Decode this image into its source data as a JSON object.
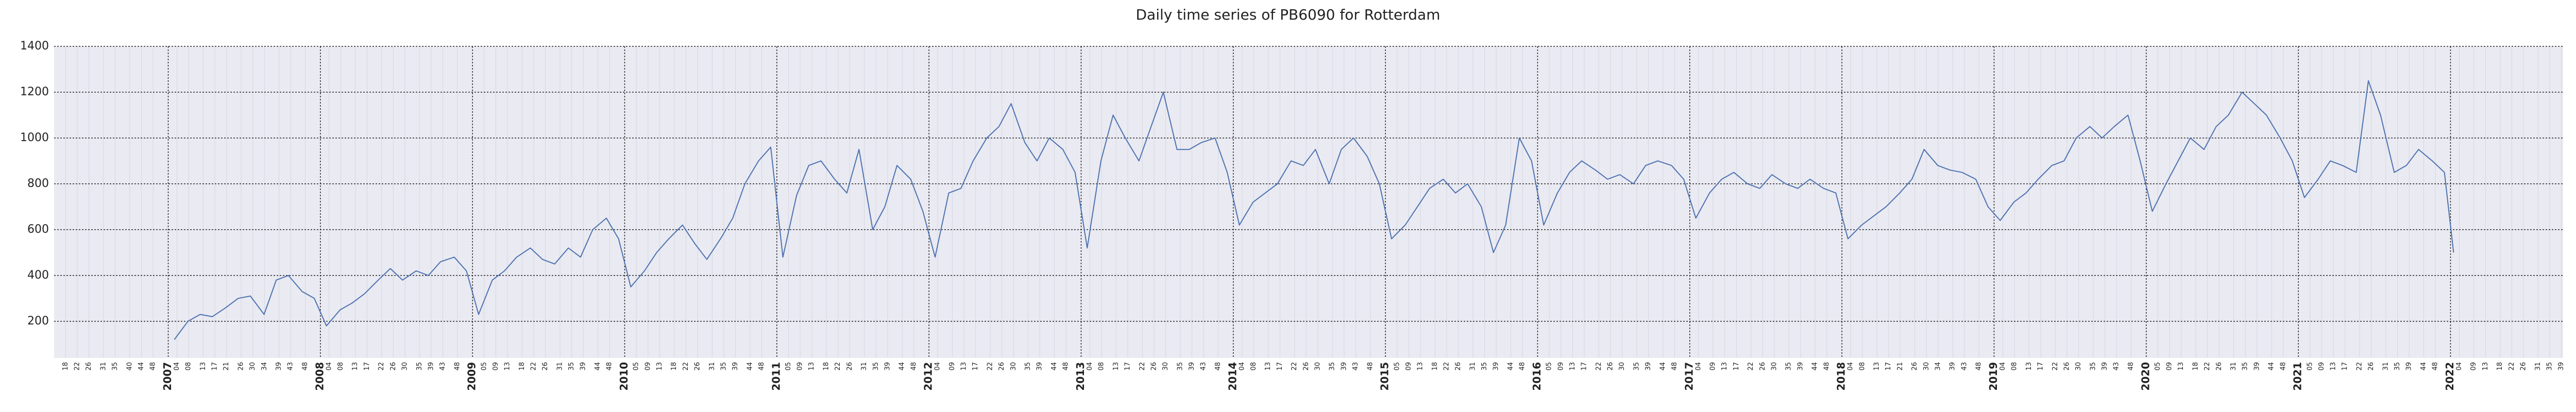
{
  "chart_data": {
    "type": "line",
    "title": "Daily time series of PB6090 for Rotterdam",
    "color": "#4c72b0",
    "grid": true,
    "xlim": [
      2006.25,
      2022.74
    ],
    "ylim": [
      40,
      1400
    ],
    "yticks": [
      200,
      400,
      600,
      800,
      1000,
      1200,
      1400
    ],
    "xticks": [
      2007,
      2008,
      2009,
      2010,
      2011,
      2012,
      2013,
      2014,
      2015,
      2016,
      2017,
      2018,
      2019,
      2020,
      2021,
      2022
    ],
    "week_ticks": [
      {
        "year": 2006,
        "labels": [
          "18",
          "22",
          "26",
          "31",
          "35",
          "40",
          "44",
          "48"
        ]
      },
      {
        "year": 2007,
        "labels": [
          "04",
          "08",
          "13",
          "17",
          "21",
          "26",
          "30",
          "34",
          "39",
          "43",
          "48"
        ]
      },
      {
        "year": 2008,
        "labels": [
          "04",
          "08",
          "13",
          "17",
          "22",
          "26",
          "30",
          "35",
          "39",
          "43",
          "48"
        ]
      },
      {
        "year": 2009,
        "labels": [
          "05",
          "09",
          "13",
          "18",
          "22",
          "26",
          "31",
          "35",
          "39",
          "44",
          "48"
        ]
      },
      {
        "year": 2010,
        "labels": [
          "05",
          "09",
          "13",
          "18",
          "22",
          "26",
          "31",
          "35",
          "39",
          "44",
          "48"
        ]
      },
      {
        "year": 2011,
        "labels": [
          "05",
          "09",
          "13",
          "18",
          "22",
          "26",
          "31",
          "35",
          "39",
          "44",
          "48"
        ]
      },
      {
        "year": 2012,
        "labels": [
          "04",
          "09",
          "13",
          "17",
          "22",
          "26",
          "30",
          "35",
          "39",
          "44",
          "48"
        ]
      },
      {
        "year": 2013,
        "labels": [
          "04",
          "08",
          "13",
          "17",
          "22",
          "26",
          "30",
          "35",
          "39",
          "43",
          "48"
        ]
      },
      {
        "year": 2014,
        "labels": [
          "04",
          "08",
          "13",
          "17",
          "22",
          "26",
          "30",
          "35",
          "39",
          "43",
          "48"
        ]
      },
      {
        "year": 2015,
        "labels": [
          "05",
          "09",
          "13",
          "18",
          "22",
          "26",
          "31",
          "35",
          "39",
          "44",
          "48"
        ]
      },
      {
        "year": 2016,
        "labels": [
          "05",
          "09",
          "13",
          "17",
          "22",
          "26",
          "30",
          "35",
          "39",
          "44",
          "48"
        ]
      },
      {
        "year": 2017,
        "labels": [
          "04",
          "09",
          "13",
          "17",
          "22",
          "26",
          "30",
          "35",
          "39",
          "44",
          "48"
        ]
      },
      {
        "year": 2018,
        "labels": [
          "04",
          "08",
          "13",
          "17",
          "21",
          "26",
          "30",
          "34",
          "39",
          "43",
          "48"
        ]
      },
      {
        "year": 2019,
        "labels": [
          "04",
          "08",
          "13",
          "17",
          "22",
          "26",
          "30",
          "35",
          "39",
          "43",
          "48"
        ]
      },
      {
        "year": 2020,
        "labels": [
          "05",
          "09",
          "13",
          "18",
          "22",
          "26",
          "31",
          "35",
          "39",
          "44",
          "48"
        ]
      },
      {
        "year": 2021,
        "labels": [
          "05",
          "09",
          "13",
          "17",
          "22",
          "26",
          "31",
          "35",
          "39",
          "44",
          "48"
        ]
      },
      {
        "year": 2022,
        "labels": [
          "04",
          "09",
          "13",
          "18",
          "22",
          "26",
          "31",
          "35",
          "39"
        ]
      }
    ],
    "x": [
      2007.04,
      2007.13,
      2007.21,
      2007.29,
      2007.38,
      2007.46,
      2007.54,
      2007.63,
      2007.71,
      2007.79,
      2007.88,
      2007.96,
      2008.04,
      2008.13,
      2008.21,
      2008.29,
      2008.38,
      2008.46,
      2008.54,
      2008.63,
      2008.71,
      2008.79,
      2008.88,
      2008.96,
      2009.04,
      2009.13,
      2009.21,
      2009.29,
      2009.38,
      2009.46,
      2009.54,
      2009.63,
      2009.71,
      2009.79,
      2009.88,
      2009.96,
      2010.04,
      2010.13,
      2010.21,
      2010.29,
      2010.38,
      2010.46,
      2010.54,
      2010.63,
      2010.71,
      2010.79,
      2010.88,
      2010.96,
      2011.04,
      2011.13,
      2011.21,
      2011.29,
      2011.38,
      2011.46,
      2011.54,
      2011.63,
      2011.71,
      2011.79,
      2011.88,
      2011.96,
      2012.04,
      2012.13,
      2012.21,
      2012.29,
      2012.38,
      2012.46,
      2012.54,
      2012.63,
      2012.71,
      2012.79,
      2012.88,
      2012.96,
      2013.04,
      2013.13,
      2013.21,
      2013.29,
      2013.38,
      2013.46,
      2013.54,
      2013.63,
      2013.71,
      2013.79,
      2013.88,
      2013.96,
      2014.04,
      2014.13,
      2014.21,
      2014.29,
      2014.38,
      2014.46,
      2014.54,
      2014.63,
      2014.71,
      2014.79,
      2014.88,
      2014.96,
      2015.04,
      2015.13,
      2015.21,
      2015.29,
      2015.38,
      2015.46,
      2015.54,
      2015.63,
      2015.71,
      2015.79,
      2015.88,
      2015.96,
      2016.04,
      2016.13,
      2016.21,
      2016.29,
      2016.38,
      2016.46,
      2016.54,
      2016.63,
      2016.71,
      2016.79,
      2016.88,
      2016.96,
      2017.04,
      2017.13,
      2017.21,
      2017.29,
      2017.38,
      2017.46,
      2017.54,
      2017.63,
      2017.71,
      2017.79,
      2017.88,
      2017.96,
      2018.04,
      2018.13,
      2018.21,
      2018.29,
      2018.38,
      2018.46,
      2018.54,
      2018.63,
      2018.71,
      2018.79,
      2018.88,
      2018.96,
      2019.04,
      2019.13,
      2019.21,
      2019.29,
      2019.38,
      2019.46,
      2019.54,
      2019.63,
      2019.71,
      2019.79,
      2019.88,
      2019.96,
      2020.04,
      2020.13,
      2020.21,
      2020.29,
      2020.38,
      2020.46,
      2020.54,
      2020.63,
      2020.71,
      2020.79,
      2020.88,
      2020.96,
      2021.04,
      2021.13,
      2021.21,
      2021.29,
      2021.38,
      2021.46,
      2021.54,
      2021.63,
      2021.71,
      2021.79,
      2021.88,
      2021.96,
      2022.02
    ],
    "values": [
      120,
      200,
      230,
      220,
      260,
      300,
      310,
      230,
      380,
      400,
      330,
      300,
      180,
      250,
      280,
      320,
      380,
      430,
      380,
      420,
      400,
      460,
      480,
      420,
      230,
      380,
      420,
      480,
      520,
      470,
      450,
      520,
      480,
      600,
      650,
      560,
      350,
      420,
      500,
      560,
      620,
      540,
      470,
      560,
      650,
      800,
      900,
      960,
      480,
      750,
      880,
      900,
      820,
      760,
      950,
      600,
      700,
      880,
      820,
      680,
      480,
      760,
      780,
      900,
      1000,
      1050,
      1150,
      980,
      900,
      1000,
      950,
      850,
      520,
      900,
      1100,
      1000,
      900,
      1050,
      1200,
      950,
      950,
      980,
      1000,
      850,
      620,
      720,
      760,
      800,
      900,
      880,
      950,
      800,
      950,
      1000,
      920,
      800,
      560,
      620,
      700,
      780,
      820,
      760,
      800,
      700,
      500,
      620,
      1000,
      900,
      620,
      760,
      850,
      900,
      860,
      820,
      840,
      800,
      880,
      900,
      880,
      820,
      650,
      760,
      820,
      850,
      800,
      780,
      840,
      800,
      780,
      820,
      780,
      760,
      560,
      620,
      660,
      700,
      760,
      820,
      950,
      880,
      860,
      850,
      820,
      700,
      640,
      720,
      760,
      820,
      880,
      900,
      1000,
      1050,
      1000,
      1050,
      1100,
      900,
      680,
      800,
      900,
      1000,
      950,
      1050,
      1100,
      1200,
      1150,
      1100,
      1000,
      900,
      740,
      820,
      900,
      880,
      850,
      1250,
      1100,
      850,
      880,
      950,
      900,
      850,
      500
    ]
  }
}
